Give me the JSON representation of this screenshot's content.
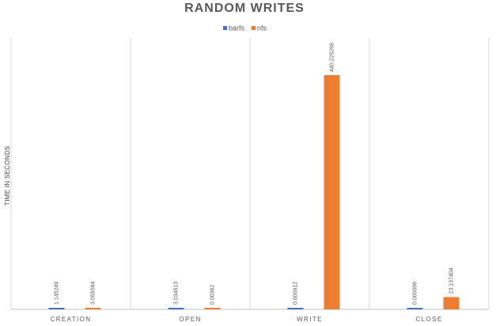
{
  "chart_data": {
    "type": "bar",
    "title": "RANDOM WRITES",
    "ylabel": "TIME IN SECONDS",
    "xlabel": "",
    "categories": [
      "CREATION",
      "OPEN",
      "WRITE",
      "CLOSE"
    ],
    "series": [
      {
        "name": "barfs",
        "color": "#4472c4",
        "values": [
          1.145249,
          3.034513,
          0.800912,
          6e-06
        ],
        "labels": [
          "1.145249",
          "3.034513",
          "0.800912",
          "0.000006"
        ]
      },
      {
        "name": "nfs",
        "color": "#ed7d31",
        "values": [
          3.055084,
          0.00362,
          440.225266,
          23.137404
        ],
        "labels": [
          "3.055084",
          "0.00362",
          "440.225266",
          "23.137404"
        ]
      }
    ],
    "ylim": [
      0,
      440.225266
    ],
    "grid": true,
    "legend": "top-center"
  }
}
